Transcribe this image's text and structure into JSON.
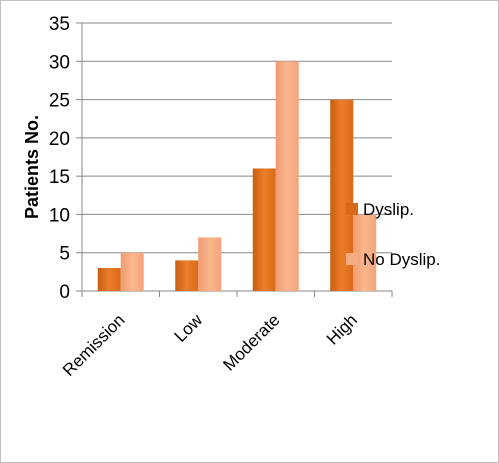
{
  "chart_data": {
    "type": "bar",
    "title": "",
    "xlabel": "",
    "ylabel": "Patients No.",
    "ylim": [
      0,
      35
    ],
    "yticks": [
      0,
      5,
      10,
      15,
      20,
      25,
      30,
      35
    ],
    "grid": true,
    "legend_position": "right",
    "categories": [
      "Remission",
      "Low",
      "Moderate",
      "High"
    ],
    "series": [
      {
        "name": "Dyslip.",
        "values": [
          3,
          4,
          16,
          25
        ],
        "color": "#e87722",
        "color_light": "#f3a25c"
      },
      {
        "name": "No Dyslip.",
        "values": [
          5,
          7,
          30,
          10
        ],
        "color": "#f4a27a",
        "color_light": "#fbc39c"
      }
    ]
  }
}
